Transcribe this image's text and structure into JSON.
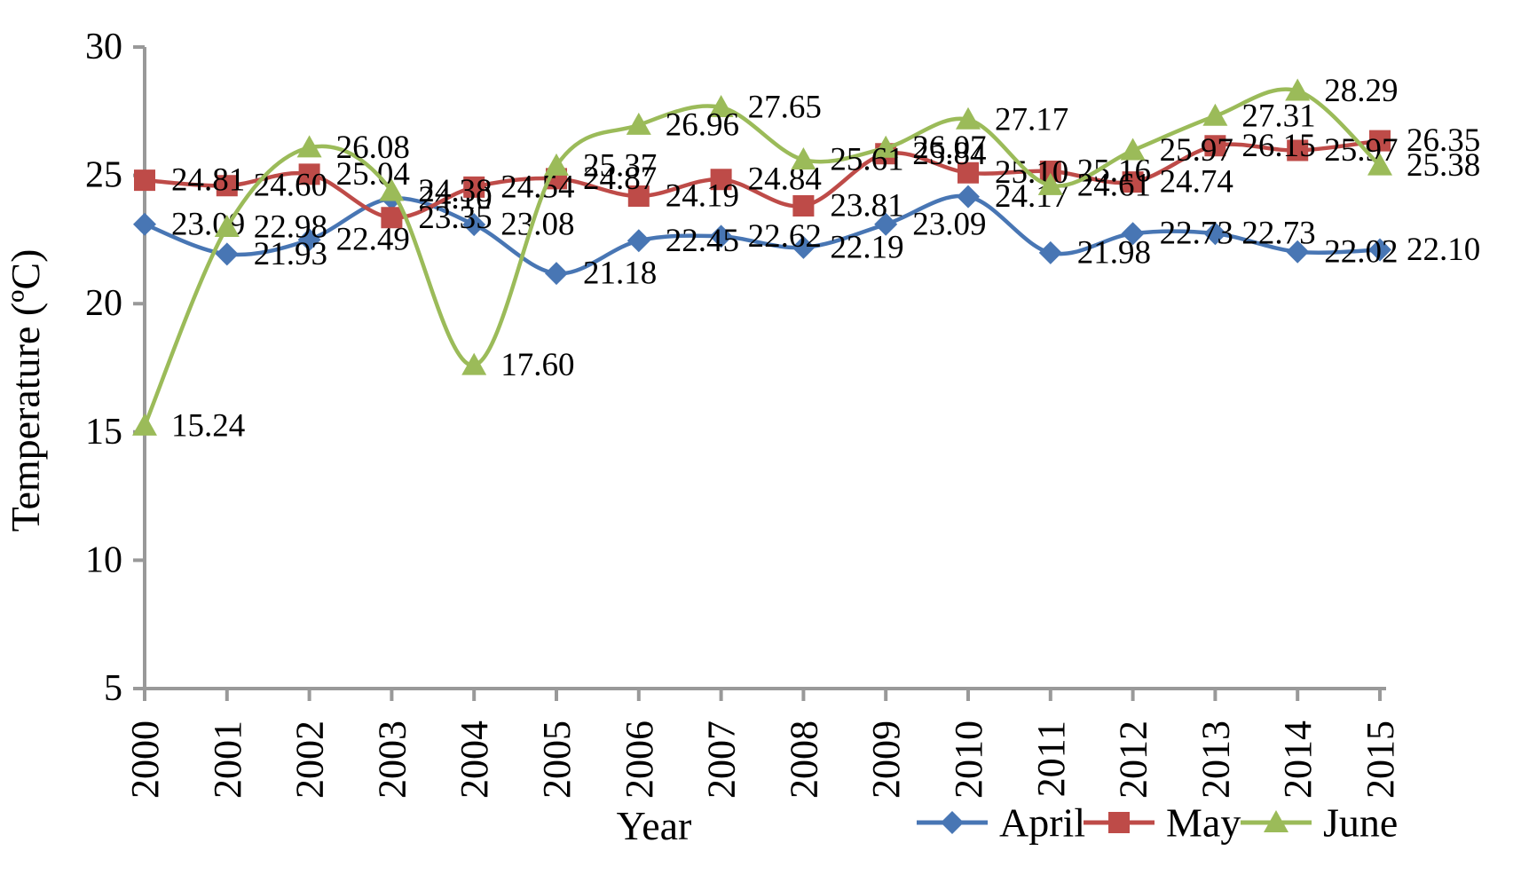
{
  "chart_data": {
    "type": "line",
    "title": "",
    "xlabel": "Year",
    "ylabel": "Temperature (ºC)",
    "x": [
      2000,
      2001,
      2002,
      2003,
      2004,
      2005,
      2006,
      2007,
      2008,
      2009,
      2010,
      2011,
      2012,
      2013,
      2014,
      2015
    ],
    "ylim": [
      5,
      30
    ],
    "yticks": [
      5,
      10,
      15,
      20,
      25,
      30
    ],
    "grid": false,
    "smooth_lines": true,
    "data_labels": true,
    "data_label_position": "right",
    "legend_position": "bottom-right",
    "series": [
      {
        "name": "April",
        "marker": "diamond",
        "color": "#4876B4",
        "values": [
          23.09,
          21.93,
          22.49,
          24.1,
          23.08,
          21.18,
          22.45,
          22.62,
          22.19,
          23.09,
          24.17,
          21.98,
          22.73,
          22.73,
          22.02,
          22.1
        ]
      },
      {
        "name": "May",
        "marker": "square",
        "color": "#BE4B48",
        "values": [
          24.81,
          24.6,
          25.04,
          23.35,
          24.54,
          24.87,
          24.19,
          24.84,
          23.81,
          25.84,
          25.1,
          25.16,
          24.74,
          26.15,
          25.97,
          26.35
        ]
      },
      {
        "name": "June",
        "marker": "triangle",
        "color": "#9BBB59",
        "values": [
          15.24,
          22.98,
          26.08,
          24.38,
          17.6,
          25.37,
          26.96,
          27.65,
          25.61,
          26.07,
          27.17,
          24.61,
          25.97,
          27.31,
          28.29,
          25.38
        ]
      }
    ],
    "axis_color": "#999999",
    "text_color": "#000000",
    "background": "#FFFFFF"
  }
}
